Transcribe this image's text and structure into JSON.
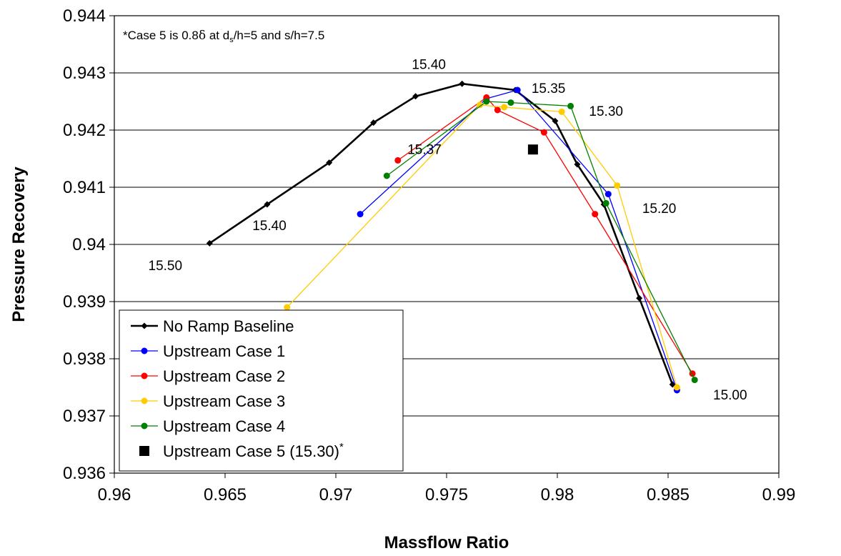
{
  "chart_data": {
    "type": "line",
    "xlabel": "Massflow Ratio",
    "ylabel": "Pressure Recovery",
    "xlim": [
      0.96,
      0.99
    ],
    "ylim": [
      0.936,
      0.944
    ],
    "xticks": [
      "0.96",
      "0.965",
      "0.97",
      "0.975",
      "0.98",
      "0.985",
      "0.99"
    ],
    "yticks": [
      "0.936",
      "0.937",
      "0.938",
      "0.939",
      "0.94",
      "0.941",
      "0.942",
      "0.943",
      "0.944"
    ],
    "grid": "horizontal",
    "legend_position": "bottom-left",
    "note": {
      "parts": [
        "*Case 5 is 0.8",
        "δ",
        " at d",
        "s",
        "/h=5 and s/h=7.5"
      ]
    },
    "series": [
      {
        "name": "No Ramp Baseline",
        "color": "#000000",
        "marker": "diamond",
        "points": [
          [
            0.9643,
            0.94002
          ],
          [
            0.9669,
            0.9407
          ],
          [
            0.9697,
            0.94143
          ],
          [
            0.9717,
            0.94213
          ],
          [
            0.9736,
            0.94259
          ],
          [
            0.9757,
            0.94281
          ],
          [
            0.9781,
            0.9427
          ],
          [
            0.9799,
            0.94216
          ],
          [
            0.9809,
            0.9414
          ],
          [
            0.9821,
            0.9407
          ],
          [
            0.9837,
            0.93906
          ],
          [
            0.9852,
            0.93755
          ]
        ]
      },
      {
        "name": "Upstream Case 1",
        "color": "#0000ff",
        "marker": "circle",
        "points": [
          [
            0.9711,
            0.94053
          ],
          [
            0.9768,
            0.94255
          ],
          [
            0.9782,
            0.9427
          ],
          [
            0.9823,
            0.94088
          ],
          [
            0.9854,
            0.93745
          ]
        ]
      },
      {
        "name": "Upstream Case 2",
        "color": "#ff0000",
        "marker": "circle",
        "points": [
          [
            0.9728,
            0.94147
          ],
          [
            0.9768,
            0.94257
          ],
          [
            0.9773,
            0.94235
          ],
          [
            0.9794,
            0.94196
          ],
          [
            0.9817,
            0.94053
          ],
          [
            0.9861,
            0.93774
          ]
        ]
      },
      {
        "name": "Upstream Case 3",
        "color": "#ffcc00",
        "marker": "circle",
        "points": [
          [
            0.9678,
            0.9389
          ],
          [
            0.9765,
            0.94244
          ],
          [
            0.9776,
            0.9424
          ],
          [
            0.9802,
            0.94232
          ],
          [
            0.9827,
            0.94103
          ],
          [
            0.9854,
            0.9375
          ]
        ]
      },
      {
        "name": "Upstream Case 4",
        "color": "#008000",
        "marker": "circle",
        "points": [
          [
            0.9723,
            0.9412
          ],
          [
            0.9768,
            0.9425
          ],
          [
            0.9779,
            0.94248
          ],
          [
            0.9806,
            0.94242
          ],
          [
            0.9822,
            0.94072
          ],
          [
            0.9862,
            0.93763
          ]
        ]
      },
      {
        "name": "Upstream Case 5 (15.30)",
        "legend_suffix": "*",
        "color": "#000000",
        "marker": "square",
        "points": [
          [
            0.9789,
            0.94166
          ]
        ]
      }
    ],
    "annotations": [
      {
        "text": "15.40",
        "x": 0.9742,
        "y": 0.94307
      },
      {
        "text": "15.35",
        "x": 0.9796,
        "y": 0.94265
      },
      {
        "text": "15.30",
        "x": 0.9822,
        "y": 0.94225
      },
      {
        "text": "15.37",
        "x": 0.974,
        "y": 0.94158
      },
      {
        "text": "15.20",
        "x": 0.9846,
        "y": 0.94055
      },
      {
        "text": "15.40",
        "x": 0.967,
        "y": 0.94025
      },
      {
        "text": "15.50",
        "x": 0.9623,
        "y": 0.93955
      },
      {
        "text": "15.00",
        "x": 0.9878,
        "y": 0.93729
      }
    ]
  }
}
